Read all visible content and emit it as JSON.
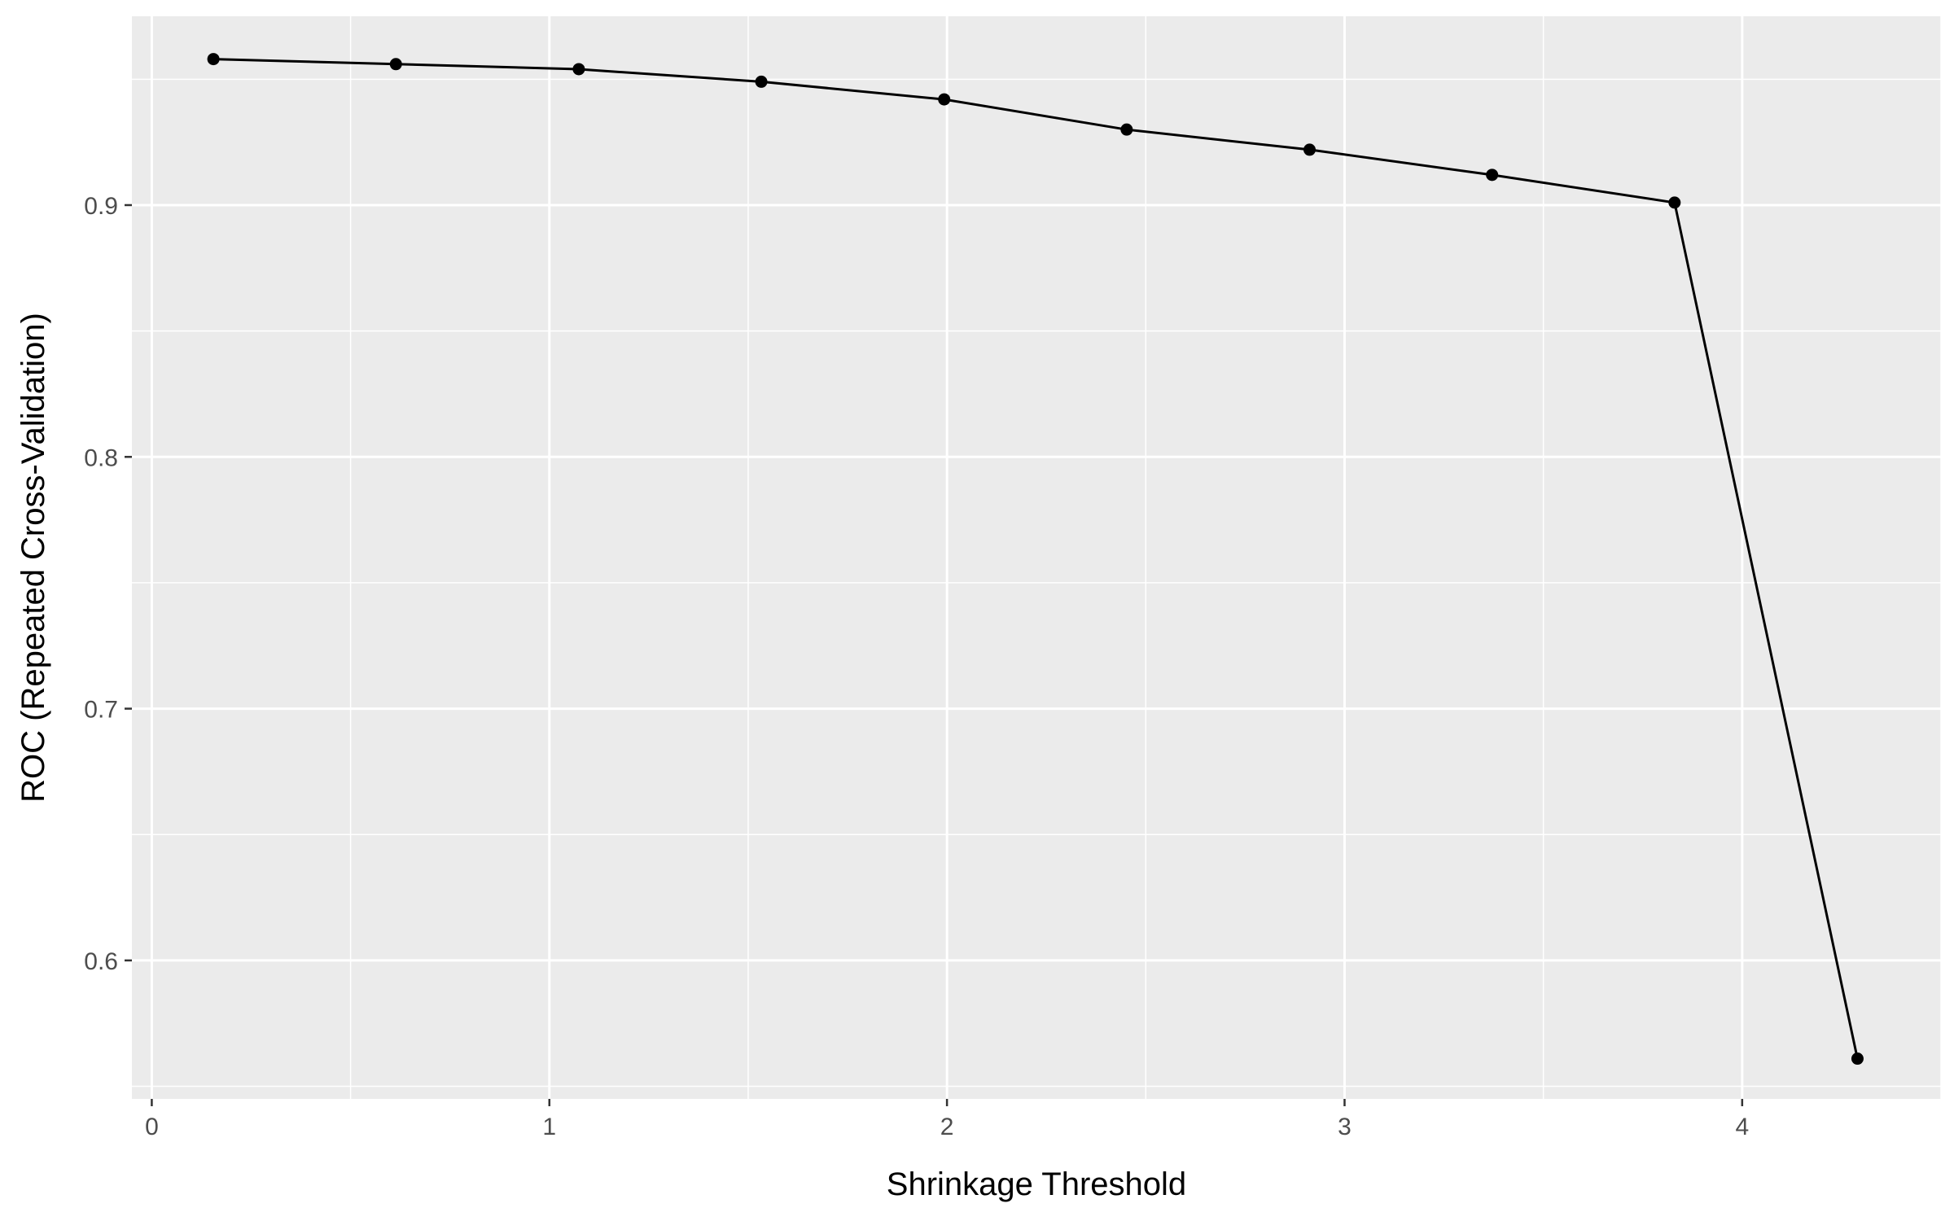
{
  "chart_data": {
    "type": "line",
    "title": "",
    "xlabel": "Shrinkage Threshold",
    "ylabel": "ROC (Repeated Cross-Validation)",
    "x": [
      0.155,
      0.614,
      1.074,
      1.533,
      1.993,
      2.452,
      2.912,
      3.371,
      3.83,
      4.29
    ],
    "series": [
      {
        "values": [
          0.958,
          0.956,
          0.954,
          0.949,
          0.942,
          0.93,
          0.922,
          0.912,
          0.901,
          0.561
        ]
      }
    ],
    "xlim": [
      -0.05,
      4.5
    ],
    "ylim": [
      0.545,
      0.975
    ],
    "x_ticks": [
      0,
      1,
      2,
      3,
      4
    ],
    "x_tick_labels": [
      "0",
      "1",
      "2",
      "3",
      "4"
    ],
    "y_ticks": [
      0.6,
      0.7,
      0.8,
      0.9
    ],
    "y_tick_labels": [
      "0.6",
      "0.7",
      "0.8",
      "0.9"
    ],
    "grid": true,
    "legend": "none",
    "colors": {
      "panel": "#ebebeb",
      "grid": "#ffffff",
      "line": "#000000",
      "axis_text": "#4d4d4d"
    }
  }
}
